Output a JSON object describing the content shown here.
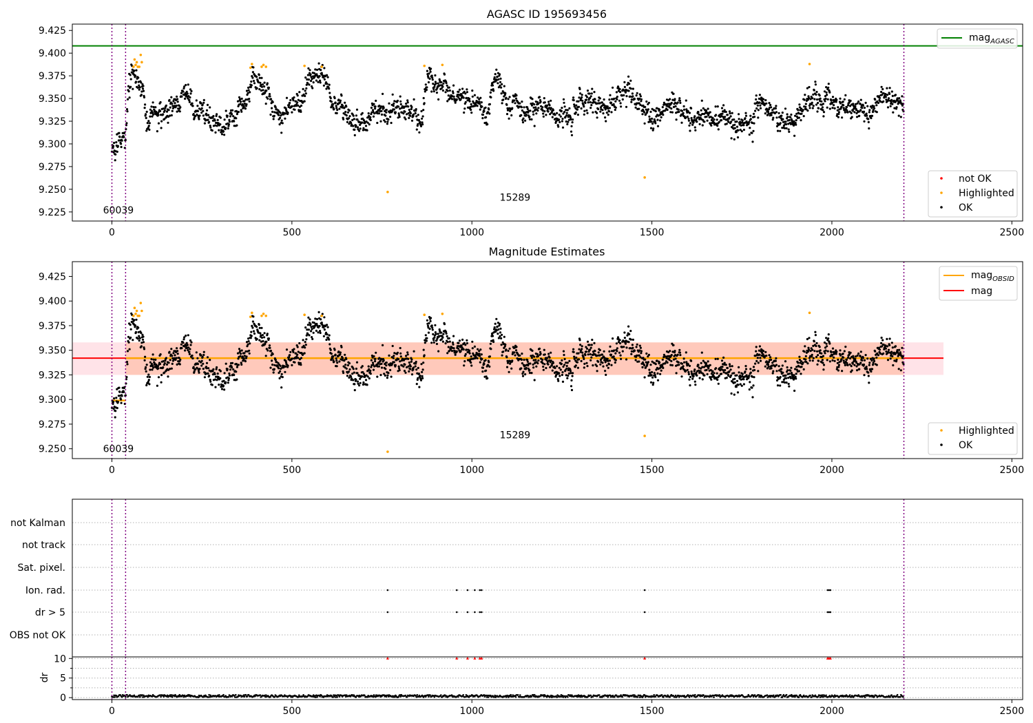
{
  "colors": {
    "ok": "#000000",
    "highlighted": "#ffa500",
    "not_ok": "#ff0000",
    "agasc_line": "#008000",
    "mag_line": "#ff0000",
    "mag_obsid": "#ffa500",
    "band_fill": "#ffc0cb",
    "obs_band_fill": "#ff9966",
    "obsid_boundary": "#800080",
    "grid": "#b0b0b0"
  },
  "chart_data": [
    {
      "type": "scatter",
      "title": "AGASC ID 195693456",
      "xlabel": "",
      "ylabel": "",
      "xlim": [
        -110,
        2530
      ],
      "ylim": [
        9.215,
        9.432
      ],
      "x_ticks": [
        0,
        500,
        1000,
        1500,
        2000,
        2500
      ],
      "y_ticks": [
        9.225,
        9.25,
        9.275,
        9.3,
        9.325,
        9.35,
        9.375,
        9.4,
        9.425
      ],
      "y_tick_labels": [
        "9.225",
        "9.250",
        "9.275",
        "9.300",
        "9.325",
        "9.350",
        "9.375",
        "9.400",
        "9.425"
      ],
      "hlines": [
        {
          "y": 9.408,
          "name": "mag_AGASC"
        }
      ],
      "obsid_boundaries": [
        0,
        38,
        2200
      ],
      "obsid_labels": [
        {
          "text": "60039",
          "x": 18,
          "y": 9.227
        },
        {
          "text": "15289",
          "x": 1120,
          "y": 9.241
        }
      ],
      "legends": [
        {
          "position": "upper right",
          "entries": [
            {
              "label": "mag",
              "sub": "AGASC",
              "kind": "line",
              "color": "#008000"
            }
          ]
        },
        {
          "position": "lower right",
          "entries": [
            {
              "label": "not OK",
              "kind": "point",
              "color": "#ff0000"
            },
            {
              "label": "Highlighted",
              "kind": "point",
              "color": "#ffa500"
            },
            {
              "label": "OK",
              "kind": "point",
              "color": "#000000"
            }
          ]
        }
      ],
      "series": [
        {
          "name": "OK",
          "generator": "mag_estimates",
          "x_range": [
            0,
            2200
          ],
          "n": 2200,
          "seed": 7
        },
        {
          "name": "Highlighted",
          "x": [
            60,
            63,
            66,
            69,
            72,
            76,
            80,
            83,
            385,
            389,
            416,
            421,
            428,
            535,
            583,
            766,
            868,
            918,
            1480,
            1938
          ],
          "y": [
            9.385,
            9.393,
            9.387,
            9.39,
            9.385,
            9.385,
            9.398,
            9.39,
            9.384,
            9.388,
            9.385,
            9.387,
            9.385,
            9.386,
            9.385,
            9.247,
            9.386,
            9.387,
            9.263,
            9.388
          ]
        }
      ]
    },
    {
      "type": "scatter",
      "title": "Magnitude Estimates",
      "xlabel": "",
      "ylabel": "",
      "xlim": [
        -110,
        2530
      ],
      "ylim": [
        9.24,
        9.44
      ],
      "x_ticks": [
        0,
        500,
        1000,
        1500,
        2000,
        2500
      ],
      "y_ticks": [
        9.25,
        9.275,
        9.3,
        9.325,
        9.35,
        9.375,
        9.4,
        9.425
      ],
      "y_tick_labels": [
        "9.250",
        "9.275",
        "9.300",
        "9.325",
        "9.350",
        "9.375",
        "9.400",
        "9.425"
      ],
      "mag": 9.342,
      "mag_band": [
        9.325,
        9.358
      ],
      "mag_band_x": [
        -110,
        2310
      ],
      "obs_band_x": [
        38,
        2200
      ],
      "obs_segments": [
        {
          "x": [
            0,
            38
          ],
          "y": 9.299
        },
        {
          "x": [
            38,
            2200
          ],
          "y": 9.342
        }
      ],
      "obsid_boundaries": [
        0,
        38,
        2200
      ],
      "obsid_labels": [
        {
          "text": "60039",
          "x": 18,
          "y": 9.25
        },
        {
          "text": "15289",
          "x": 1120,
          "y": 9.264
        }
      ],
      "legends": [
        {
          "position": "upper right",
          "entries": [
            {
              "label": "mag",
              "sub": "OBSID",
              "kind": "line",
              "color": "#ffa500"
            },
            {
              "label": "mag",
              "kind": "line",
              "color": "#ff0000"
            }
          ]
        },
        {
          "position": "lower right",
          "entries": [
            {
              "label": "Highlighted",
              "kind": "point",
              "color": "#ffa500"
            },
            {
              "label": "OK",
              "kind": "point",
              "color": "#000000"
            }
          ]
        }
      ],
      "series": [
        {
          "name": "OK",
          "generator": "mag_estimates",
          "x_range": [
            0,
            2200
          ],
          "n": 2200,
          "seed": 7
        },
        {
          "name": "Highlighted",
          "x": [
            60,
            63,
            66,
            69,
            72,
            76,
            80,
            83,
            385,
            389,
            416,
            421,
            428,
            535,
            583,
            766,
            868,
            918,
            1480,
            1938
          ],
          "y": [
            9.385,
            9.393,
            9.387,
            9.39,
            9.385,
            9.385,
            9.398,
            9.39,
            9.384,
            9.388,
            9.385,
            9.387,
            9.385,
            9.386,
            9.385,
            9.247,
            9.386,
            9.387,
            9.263,
            9.388
          ]
        }
      ]
    },
    {
      "type": "scatter",
      "title": "",
      "xlim": [
        -110,
        2530
      ],
      "categories": [
        "not Kalman",
        "not track",
        "Sat. pixel.",
        "Ion. rad.",
        "dr > 5",
        "OBS not OK"
      ],
      "flags": {
        "Ion. rad.": [
          766,
          958,
          988,
          1008,
          1022,
          1027,
          1480,
          1988,
          1992,
          1996
        ],
        "dr > 5": [
          766,
          958,
          988,
          1008,
          1022,
          1027,
          1480,
          1988,
          1992,
          1996
        ]
      },
      "obsid_boundaries": [
        0,
        38,
        2200
      ]
    },
    {
      "type": "scatter",
      "title": "",
      "xlim": [
        -110,
        2530
      ],
      "ylim": [
        -0.5,
        10.4
      ],
      "x_ticks": [
        0,
        500,
        1000,
        1500,
        2000,
        2500
      ],
      "y_ticks": [
        0,
        5,
        10
      ],
      "ylabel": "dr",
      "clipped_points_x": [
        766,
        958,
        988,
        1008,
        1022,
        1027,
        1480,
        1988,
        1992,
        1996
      ],
      "clipped_value": 10,
      "baseline_range": [
        0.1,
        0.7
      ],
      "obsid_boundaries": [
        0,
        38,
        2200
      ]
    }
  ]
}
